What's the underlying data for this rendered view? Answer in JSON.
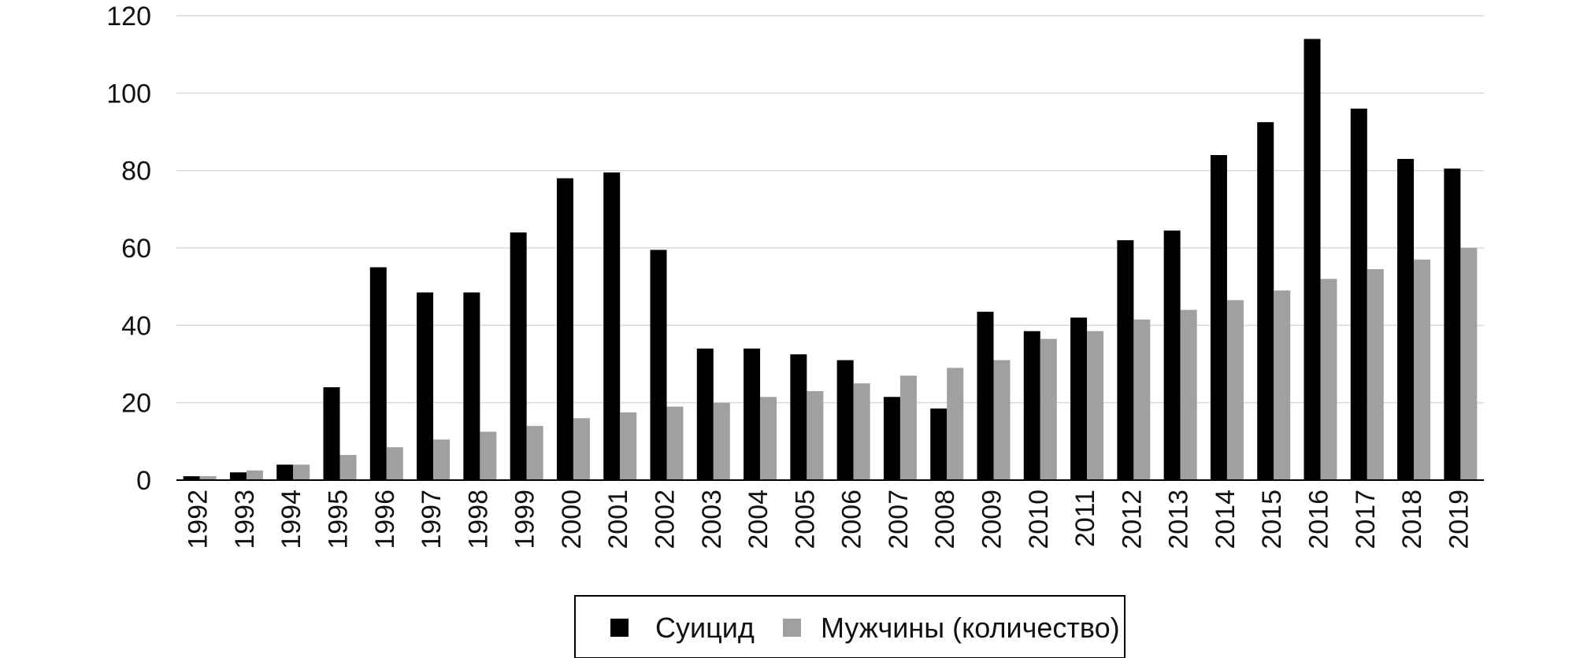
{
  "chart_data": {
    "type": "bar",
    "categories": [
      "1992",
      "1993",
      "1994",
      "1995",
      "1996",
      "1997",
      "1998",
      "1999",
      "2000",
      "2001",
      "2002",
      "2003",
      "2004",
      "2005",
      "2006",
      "2007",
      "2008",
      "2009",
      "2010",
      "2011",
      "2012",
      "2013",
      "2014",
      "2015",
      "2016",
      "2017",
      "2018",
      "2019"
    ],
    "series": [
      {
        "name": "Суицид",
        "color": "#000000",
        "values": [
          1,
          2,
          4,
          24,
          55,
          48.5,
          48.5,
          64,
          78,
          79.5,
          59.5,
          34,
          34,
          32.5,
          31,
          21.5,
          18.5,
          43.5,
          38.5,
          42,
          62,
          64.5,
          84,
          92.5,
          114,
          96,
          83,
          80.5
        ]
      },
      {
        "name": "Мужчины (количество)",
        "color": "#a0a0a0",
        "values": [
          1,
          2.5,
          4,
          6.5,
          8.5,
          10.5,
          12.5,
          14,
          16,
          17.5,
          19,
          20,
          21.5,
          23,
          25,
          27,
          29,
          31,
          36.5,
          38.5,
          41.5,
          44,
          46.5,
          49,
          52,
          54.5,
          57,
          60
        ]
      }
    ],
    "yticks": [
      "0",
      "20",
      "40",
      "60",
      "80",
      "100",
      "120"
    ],
    "ylim": [
      0,
      120
    ],
    "grid": true,
    "legend_position": "bottom-center",
    "title": "",
    "xlabel": "",
    "ylabel": ""
  }
}
